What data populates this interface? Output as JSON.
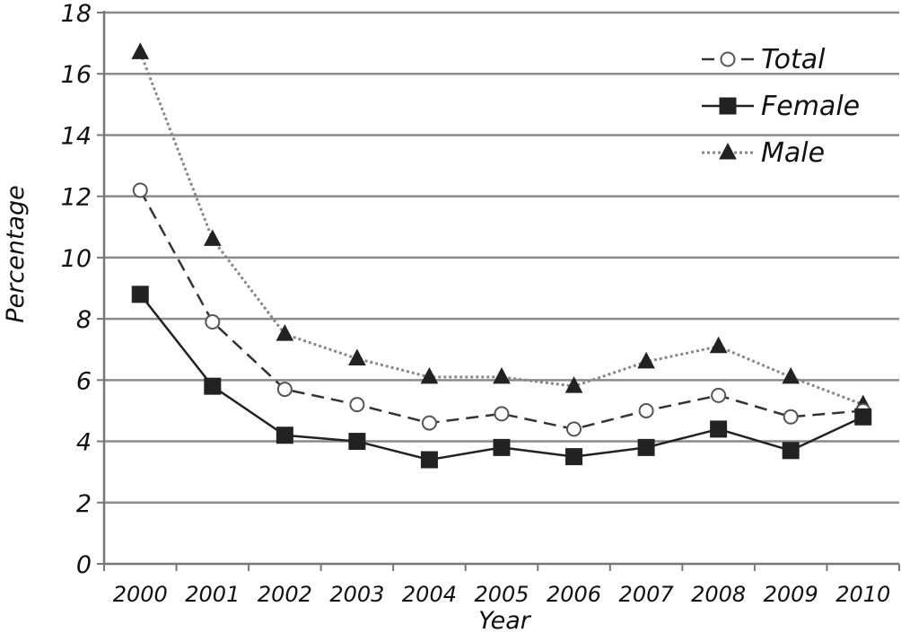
{
  "chart_data": {
    "type": "line",
    "xlabel": "Year",
    "ylabel": "Percentage",
    "ylim": [
      0,
      18
    ],
    "yticks": [
      0,
      2,
      4,
      6,
      8,
      10,
      12,
      14,
      16,
      18
    ],
    "categories": [
      "2000",
      "2001",
      "2002",
      "2003",
      "2004",
      "2005",
      "2006",
      "2007",
      "2008",
      "2009",
      "2010"
    ],
    "grid": "horizontal",
    "legend_position": "top-right",
    "series": [
      {
        "name": "Total",
        "style": "dashed",
        "marker": "open-circle",
        "color": "#333333",
        "values": [
          12.2,
          7.9,
          5.7,
          5.2,
          4.6,
          4.9,
          4.4,
          5.0,
          5.5,
          4.8,
          5.0
        ]
      },
      {
        "name": "Female",
        "style": "solid",
        "marker": "filled-square",
        "color": "#222222",
        "values": [
          8.8,
          5.8,
          4.2,
          4.0,
          3.4,
          3.8,
          3.5,
          3.8,
          4.4,
          3.7,
          4.8
        ]
      },
      {
        "name": "Male",
        "style": "dotted",
        "marker": "filled-triangle",
        "color": "#888888",
        "values": [
          16.7,
          10.6,
          7.5,
          6.7,
          6.1,
          6.1,
          5.8,
          6.6,
          7.1,
          6.1,
          5.2
        ]
      }
    ]
  }
}
